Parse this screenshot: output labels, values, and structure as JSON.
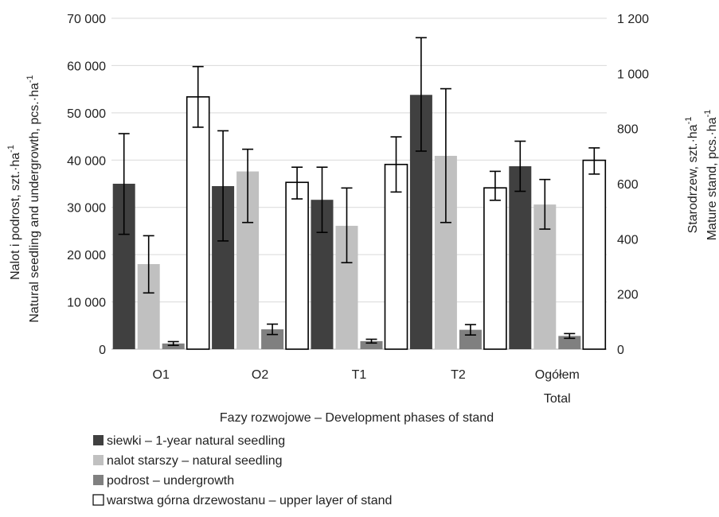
{
  "chart_data": {
    "type": "bar",
    "categories": [
      "O1",
      "O2",
      "T1",
      "T2",
      "Ogółem"
    ],
    "category_sublabels": [
      "",
      "",
      "",
      "",
      "Total"
    ],
    "xlabel": "Fazy rozwojowe – Development phases of stand",
    "ylabel_left": [
      "Nalot i podrost, szt.·ha",
      "Natural seedling and undergrowth, pcs.·ha"
    ],
    "ylabel_right": [
      "Starodrzew, szt.·ha",
      "Mature stand, pcs.·ha"
    ],
    "superscript": "-1",
    "ylim_left": [
      0,
      70000
    ],
    "ylim_right": [
      0,
      1200
    ],
    "yticks_left": [
      "0",
      "10 000",
      "20 000",
      "30 000",
      "40 000",
      "50 000",
      "60 000",
      "70 000"
    ],
    "yticks_right": [
      "0",
      "200",
      "400",
      "600",
      "800",
      "1 000",
      "1 200"
    ],
    "grid": true,
    "legend_position": "bottom-left",
    "series": [
      {
        "name": "siewki – 1-year natural seedling",
        "axis": "left",
        "color": "#404040",
        "values": [
          35000,
          34500,
          31600,
          53800,
          38700
        ],
        "err_low": [
          24300,
          22900,
          24700,
          41900,
          33400
        ],
        "err_high": [
          45600,
          46200,
          38500,
          65900,
          44000
        ]
      },
      {
        "name": "nalot starszy – natural seedling",
        "axis": "left",
        "color": "#c0c0c0",
        "values": [
          18000,
          37600,
          26100,
          40900,
          30600
        ],
        "err_low": [
          11900,
          26800,
          18300,
          26800,
          25400
        ],
        "err_high": [
          24000,
          42300,
          34100,
          55100,
          35900
        ]
      },
      {
        "name": "podrost – undergrowth",
        "axis": "left",
        "color": "#808080",
        "values": [
          1200,
          4200,
          1700,
          4100,
          2800
        ],
        "err_low": [
          800,
          3100,
          1300,
          3000,
          2300
        ],
        "err_high": [
          1600,
          5300,
          2100,
          5200,
          3300
        ]
      },
      {
        "name": "warstwa górna drzewostanu – upper layer of stand",
        "axis": "right",
        "color": "#ffffff",
        "values": [
          915,
          605,
          670,
          585,
          685
        ],
        "err_low": [
          805,
          545,
          570,
          540,
          635
        ],
        "err_high": [
          1025,
          660,
          770,
          645,
          730
        ]
      }
    ]
  }
}
